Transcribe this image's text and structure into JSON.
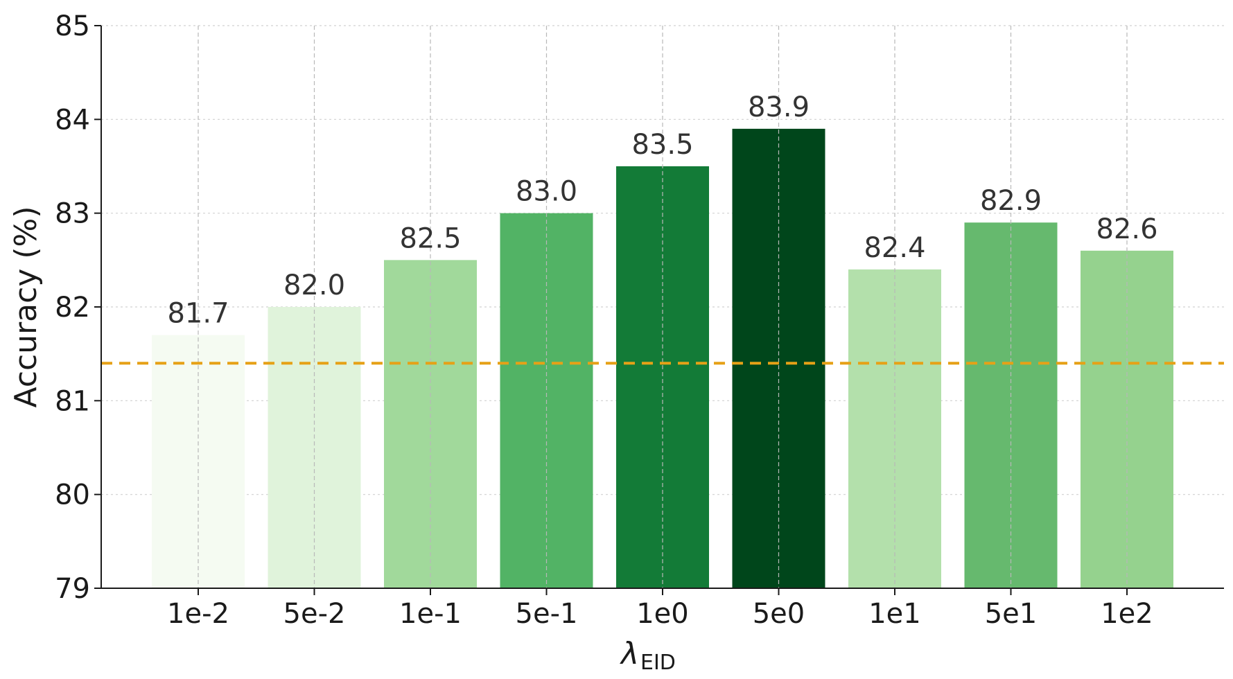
{
  "chart_data": {
    "type": "bar",
    "categories": [
      "1e-2",
      "5e-2",
      "1e-1",
      "5e-1",
      "1e0",
      "5e0",
      "1e1",
      "5e1",
      "1e2"
    ],
    "values": [
      81.7,
      82.0,
      82.5,
      83.0,
      83.5,
      83.9,
      82.4,
      82.9,
      82.6
    ],
    "value_labels": [
      "81.7",
      "82.0",
      "82.5",
      "83.0",
      "83.5",
      "83.9",
      "82.4",
      "82.9",
      "82.6"
    ],
    "colors": [
      "#f5fbf2",
      "#e0f3db",
      "#a1d99b",
      "#52b365",
      "#137b37",
      "#00461b",
      "#b3e0ab",
      "#66b96e",
      "#95d28e"
    ],
    "ylabel": "Accuracy (%)",
    "xlabel": "λ",
    "xlabel_sub": "EID",
    "ylim": [
      79,
      85
    ],
    "yticks": [
      "79",
      "80",
      "81",
      "82",
      "83",
      "84",
      "85"
    ],
    "baseline": {
      "value": 81.4,
      "color": "#e6a117",
      "style": "dashed"
    },
    "grid": true
  }
}
